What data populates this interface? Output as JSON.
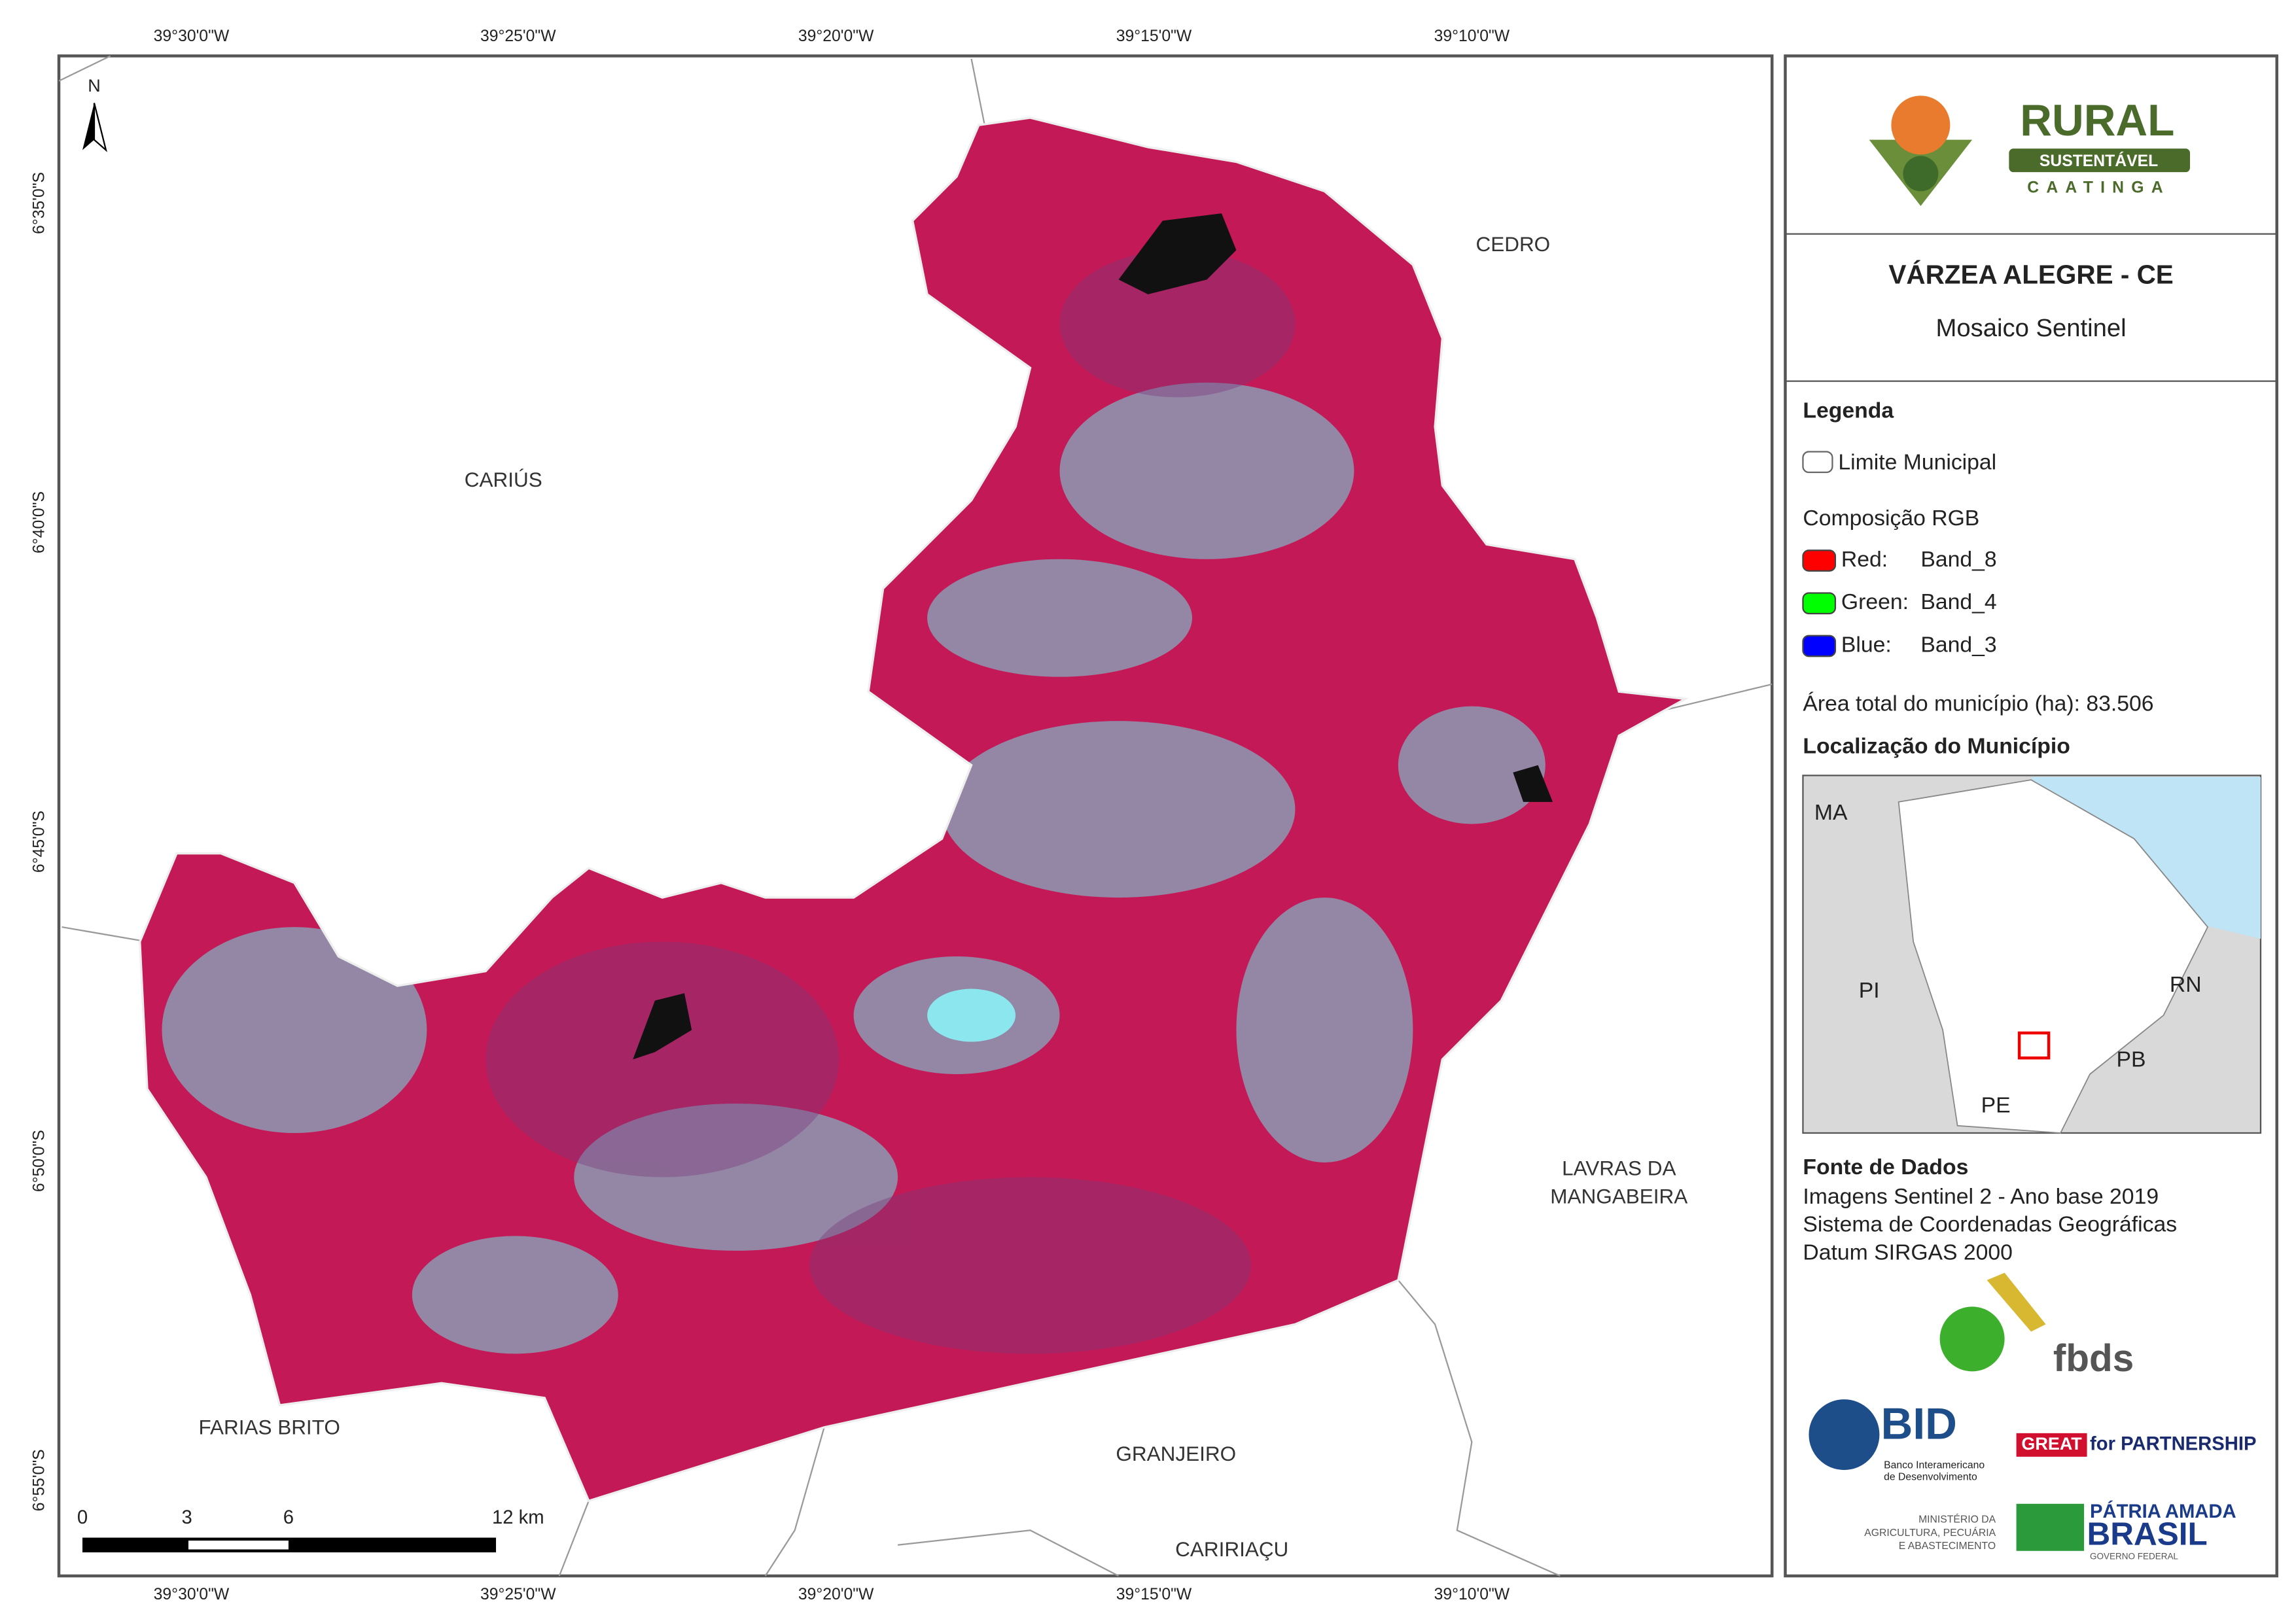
{
  "map": {
    "lon_labels": [
      "39°30'0\"W",
      "39°25'0\"W",
      "39°20'0\"W",
      "39°15'0\"W",
      "39°10'0\"W"
    ],
    "lat_labels": [
      "6°35'0\"S",
      "6°40'0\"S",
      "6°45'0\"S",
      "6°50'0\"S",
      "6°55'0\"S"
    ],
    "north": "N",
    "neighbors": [
      {
        "lines": [
          "CEDRO"
        ]
      },
      {
        "lines": [
          "CARIÚS"
        ]
      },
      {
        "lines": [
          "FARIAS BRITO"
        ]
      },
      {
        "lines": [
          "GRANJEIRO"
        ]
      },
      {
        "lines": [
          "CARIRIAÇU"
        ]
      },
      {
        "lines": [
          "LAVRAS DA",
          "MANGABEIRA"
        ]
      }
    ],
    "scale_labels": [
      "0",
      "3",
      "6",
      "12 km"
    ]
  },
  "panel": {
    "logo": {
      "title": "RURAL",
      "band": "SUSTENTÁVEL",
      "sub": "CAATINGA"
    },
    "title": "VÁRZEA ALEGRE - CE",
    "subtitle": "Mosaico Sentinel",
    "legend": {
      "heading": "Legenda",
      "boundary": "Limite Municipal",
      "rgb_heading": "Composição RGB",
      "bands": [
        {
          "channel": "Red:",
          "band": "Band_8",
          "color": "#ff0000"
        },
        {
          "channel": "Green:",
          "band": "Band_4",
          "color": "#00ff00"
        },
        {
          "channel": "Blue:",
          "band": "Band_3",
          "color": "#0000ff"
        }
      ]
    },
    "area": "Área total do município (ha): 83.506",
    "location": {
      "heading": "Localização do Município",
      "states": [
        "MA",
        "PI",
        "RN",
        "PB",
        "PE"
      ]
    },
    "sources": {
      "heading": "Fonte de Dados",
      "lines": [
        "Imagens Sentinel 2 - Ano base 2019",
        "Sistema de Coordenadas Geográficas",
        "Datum SIRGAS 2000"
      ]
    },
    "logos": {
      "fbds": "fbds",
      "bid": "BID",
      "bid_name": [
        "Banco Interamericano",
        "de Desenvolvimento"
      ],
      "great": "GREAT",
      "partnership": "for PARTNERSHIP",
      "ministry": [
        "MINISTÉRIO DA",
        "AGRICULTURA, PECUÁRIA",
        "E ABASTECIMENTO"
      ],
      "patria": "PÁTRIA AMADA",
      "brasil": "BRASIL",
      "gov": "GOVERNO FEDERAL"
    }
  }
}
